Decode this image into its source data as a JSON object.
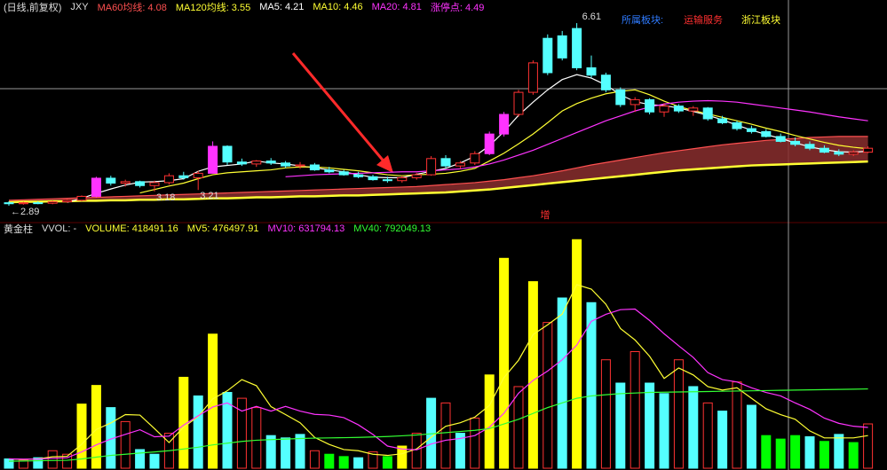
{
  "chart_data": [
    {
      "type": "candlestick",
      "header": "(日线,前复权)",
      "symbol": "JXY",
      "sectors": {
        "title": "所属板块:",
        "items": [
          "运输服务",
          "浙江板块"
        ],
        "colors": [
          "#ff3030",
          "#ffff33"
        ],
        "title_color": "#2f7bff"
      },
      "extra_legend": [
        {
          "legend": "涨停点: 4.49",
          "color": "#ff33ff"
        }
      ],
      "note": "增",
      "ylim": [
        2.6,
        6.9
      ],
      "kind_colors": {
        "up": "#ff3232",
        "down": "#54ffff",
        "limit": "#ff33ff"
      },
      "kinds": [
        "down",
        "up",
        "down",
        "up",
        "up",
        "up",
        "limit",
        "down",
        "up",
        "down",
        "up",
        "up",
        "down",
        "up",
        "limit",
        "down",
        "down",
        "up",
        "down",
        "down",
        "up",
        "down",
        "down",
        "down",
        "down",
        "down",
        "down",
        "up",
        "up",
        "up",
        "down",
        "up",
        "up",
        "limit",
        "limit",
        "up",
        "up",
        "down",
        "down",
        "down",
        "down",
        "down",
        "down",
        "up",
        "down",
        "up",
        "down",
        "up",
        "down",
        "down",
        "down",
        "down",
        "down",
        "down",
        "down",
        "down",
        "down",
        "down",
        "up",
        "up"
      ],
      "open": [
        2.95,
        2.93,
        2.95,
        2.94,
        2.97,
        3.0,
        3.08,
        3.45,
        3.35,
        3.38,
        3.3,
        3.36,
        3.5,
        3.46,
        3.55,
        4.1,
        3.78,
        3.74,
        3.8,
        3.76,
        3.7,
        3.72,
        3.62,
        3.58,
        3.52,
        3.48,
        3.42,
        3.4,
        3.46,
        3.52,
        3.85,
        3.7,
        3.76,
        3.95,
        4.35,
        4.75,
        5.2,
        6.3,
        6.35,
        6.5,
        5.7,
        5.55,
        5.25,
        4.95,
        5.05,
        4.8,
        4.92,
        4.82,
        4.88,
        4.66,
        4.58,
        4.46,
        4.4,
        4.3,
        4.2,
        4.14,
        4.06,
        3.98,
        3.94,
        3.98
      ],
      "high": [
        2.98,
        2.97,
        2.98,
        2.99,
        3.02,
        3.1,
        3.48,
        3.5,
        3.42,
        3.4,
        3.4,
        3.55,
        3.58,
        3.6,
        4.2,
        4.12,
        3.85,
        3.82,
        3.86,
        3.8,
        3.78,
        3.76,
        3.68,
        3.62,
        3.58,
        3.52,
        3.48,
        3.5,
        3.56,
        3.9,
        3.92,
        3.8,
        4.0,
        4.4,
        4.8,
        5.25,
        5.85,
        6.38,
        6.45,
        6.61,
        5.95,
        5.6,
        5.3,
        5.1,
        5.08,
        4.98,
        4.96,
        4.92,
        4.9,
        4.72,
        4.62,
        4.52,
        4.45,
        4.36,
        4.28,
        4.2,
        4.12,
        4.04,
        4.02,
        4.1
      ],
      "low": [
        2.89,
        2.91,
        2.92,
        2.92,
        2.95,
        2.98,
        3.06,
        3.3,
        3.28,
        3.26,
        3.18,
        3.32,
        3.42,
        3.21,
        3.55,
        3.72,
        3.7,
        3.68,
        3.72,
        3.66,
        3.64,
        3.6,
        3.55,
        3.5,
        3.45,
        3.4,
        3.36,
        3.36,
        3.42,
        3.5,
        3.66,
        3.64,
        3.72,
        3.92,
        4.3,
        4.7,
        5.15,
        5.55,
        5.85,
        5.65,
        5.5,
        5.2,
        4.9,
        4.8,
        4.75,
        4.7,
        4.78,
        4.72,
        4.62,
        4.55,
        4.42,
        4.36,
        4.28,
        4.18,
        4.1,
        4.02,
        3.96,
        3.9,
        3.9,
        3.96
      ],
      "close": [
        2.93,
        2.95,
        2.94,
        2.97,
        3.0,
        3.08,
        3.45,
        3.35,
        3.38,
        3.3,
        3.36,
        3.5,
        3.46,
        3.55,
        4.1,
        3.78,
        3.74,
        3.8,
        3.76,
        3.7,
        3.72,
        3.62,
        3.58,
        3.52,
        3.48,
        3.42,
        3.4,
        3.46,
        3.52,
        3.85,
        3.7,
        3.76,
        3.95,
        4.35,
        4.75,
        5.2,
        5.8,
        5.6,
        5.9,
        5.7,
        5.55,
        5.25,
        4.95,
        5.05,
        4.8,
        4.92,
        4.82,
        4.88,
        4.66,
        4.58,
        4.46,
        4.4,
        4.3,
        4.2,
        4.14,
        4.06,
        3.98,
        3.94,
        3.98,
        4.06
      ],
      "annotations": [
        {
          "label": "6.61",
          "value": 6.61
        },
        {
          "label": "←2.89",
          "value": 2.89
        },
        {
          "label": "3.18",
          "value": 3.18
        },
        {
          "label": "3.21",
          "value": 3.21
        }
      ],
      "lines": [
        {
          "legend": "MA60均线: 4.08",
          "color": "#ff5050",
          "area_color": "#8a2e2e",
          "area": true,
          "values": [
            3.0,
            3.01,
            3.02,
            3.03,
            3.04,
            3.05,
            3.06,
            3.07,
            3.08,
            3.09,
            3.1,
            3.11,
            3.12,
            3.13,
            3.14,
            3.15,
            3.16,
            3.17,
            3.18,
            3.19,
            3.2,
            3.21,
            3.22,
            3.23,
            3.24,
            3.25,
            3.26,
            3.27,
            3.28,
            3.3,
            3.32,
            3.34,
            3.36,
            3.39,
            3.42,
            3.46,
            3.5,
            3.55,
            3.6,
            3.66,
            3.72,
            3.77,
            3.82,
            3.87,
            3.92,
            3.97,
            4.01,
            4.05,
            4.09,
            4.13,
            4.16,
            4.19,
            4.22,
            4.24,
            4.26,
            4.28,
            4.29,
            4.3,
            4.3,
            4.3
          ]
        },
        {
          "legend": "MA120均线: 3.55",
          "color": "#ffff33",
          "width": 2.5,
          "values": [
            2.96,
            2.97,
            2.97,
            2.98,
            2.98,
            2.99,
            2.99,
            3.0,
            3.0,
            3.01,
            3.01,
            3.02,
            3.02,
            3.03,
            3.04,
            3.04,
            3.05,
            3.06,
            3.06,
            3.07,
            3.08,
            3.08,
            3.09,
            3.1,
            3.1,
            3.11,
            3.12,
            3.13,
            3.14,
            3.15,
            3.16,
            3.18,
            3.2,
            3.22,
            3.25,
            3.28,
            3.31,
            3.34,
            3.37,
            3.4,
            3.43,
            3.46,
            3.49,
            3.52,
            3.55,
            3.58,
            3.61,
            3.63,
            3.65,
            3.67,
            3.69,
            3.71,
            3.72,
            3.73,
            3.74,
            3.75,
            3.76,
            3.77,
            3.78,
            3.79
          ]
        },
        {
          "legend": "MA5: 4.21",
          "color": "#ffffff",
          "values": [
            null,
            null,
            null,
            null,
            2.96,
            3.04,
            3.14,
            3.23,
            3.31,
            3.37,
            3.38,
            3.4,
            3.44,
            3.59,
            3.68,
            3.71,
            3.74,
            3.8,
            3.76,
            3.74,
            3.7,
            3.66,
            3.62,
            3.58,
            3.52,
            3.47,
            3.46,
            3.46,
            3.53,
            3.59,
            3.65,
            3.76,
            3.9,
            4.11,
            4.4,
            4.73,
            5.0,
            5.25,
            5.46,
            5.56,
            5.49,
            5.35,
            5.15,
            5.01,
            4.95,
            4.93,
            4.88,
            4.81,
            4.73,
            4.64,
            4.53,
            4.43,
            4.34,
            4.26,
            4.17,
            4.09,
            4.03,
            3.99,
            3.98,
            4.0
          ]
        },
        {
          "legend": "MA10: 4.46",
          "color": "#ffff33",
          "values": [
            null,
            null,
            null,
            null,
            null,
            null,
            null,
            null,
            null,
            3.15,
            3.22,
            3.29,
            3.35,
            3.44,
            3.52,
            3.56,
            3.58,
            3.6,
            3.62,
            3.66,
            3.68,
            3.68,
            3.66,
            3.63,
            3.6,
            3.56,
            3.52,
            3.5,
            3.52,
            3.53,
            3.55,
            3.59,
            3.65,
            3.8,
            3.96,
            4.15,
            4.35,
            4.58,
            4.82,
            4.97,
            5.08,
            5.17,
            5.22,
            5.25,
            5.15,
            5.02,
            4.91,
            4.83,
            4.76,
            4.69,
            4.62,
            4.55,
            4.47,
            4.4,
            4.32,
            4.25,
            4.18,
            4.12,
            4.08,
            4.05
          ]
        },
        {
          "legend": "MA20: 4.81",
          "color": "#ff33ff",
          "values": [
            null,
            null,
            null,
            null,
            null,
            null,
            null,
            null,
            null,
            null,
            null,
            null,
            null,
            null,
            null,
            null,
            null,
            null,
            null,
            3.48,
            3.5,
            3.52,
            3.53,
            3.54,
            3.55,
            3.56,
            3.57,
            3.58,
            3.58,
            3.6,
            3.62,
            3.64,
            3.68,
            3.74,
            3.82,
            3.92,
            4.02,
            4.14,
            4.26,
            4.38,
            4.5,
            4.62,
            4.72,
            4.82,
            4.9,
            4.96,
            5.0,
            5.02,
            5.03,
            5.02,
            5.0,
            4.96,
            4.92,
            4.88,
            4.84,
            4.8,
            4.75,
            4.7,
            4.66,
            4.62
          ]
        }
      ]
    },
    {
      "type": "bar",
      "title": "黄金柱",
      "indicator": "VVOL: -",
      "ylim": [
        0,
        2000000
      ],
      "kind_colors": {
        "up": "#ff3232",
        "down": "#54ffff",
        "gold": "#ffff00",
        "green": "#00ff00"
      },
      "kinds": [
        "down",
        "up",
        "down",
        "up",
        "up",
        "gold",
        "gold",
        "down",
        "up",
        "down",
        "down",
        "up",
        "gold",
        "down",
        "gold",
        "down",
        "up",
        "up",
        "down",
        "down",
        "down",
        "up",
        "green",
        "green",
        "down",
        "up",
        "green",
        "gold",
        "up",
        "down",
        "up",
        "down",
        "up",
        "gold",
        "gold",
        "up",
        "gold",
        "up",
        "down",
        "gold",
        "down",
        "up",
        "down",
        "up",
        "down",
        "down",
        "up",
        "down",
        "up",
        "down",
        "up",
        "down",
        "green",
        "green",
        "green",
        "down",
        "green",
        "down",
        "green",
        "up"
      ],
      "values": [
        80000,
        70000,
        90000,
        150000,
        120000,
        550000,
        710000,
        520000,
        400000,
        160000,
        120000,
        300000,
        780000,
        620000,
        1150000,
        650000,
        600000,
        520000,
        280000,
        260000,
        290000,
        150000,
        120000,
        100000,
        90000,
        140000,
        100000,
        190000,
        300000,
        600000,
        560000,
        300000,
        430000,
        800000,
        1800000,
        700000,
        1600000,
        1250000,
        1460000,
        1960000,
        1420000,
        930000,
        730000,
        1000000,
        730000,
        640000,
        930000,
        700000,
        560000,
        490000,
        740000,
        540000,
        280000,
        250000,
        280000,
        270000,
        230000,
        290000,
        220000,
        380000
      ],
      "lines": [
        {
          "legend": "VOLUME: 418491.16",
          "color": "#ffff33",
          "values": null
        },
        {
          "legend": "MV5: 476497.91",
          "color": "#ffff33",
          "values": [
            80000,
            75000,
            80000,
            98000,
            102000,
            206000,
            332000,
            388000,
            460000,
            456000,
            340000,
            220000,
            352000,
            444000,
            594000,
            664000,
            760000,
            708000,
            528000,
            460000,
            390000,
            264000,
            204000,
            160000,
            150000,
            120000,
            110000,
            124000,
            166000,
            266000,
            360000,
            390000,
            438000,
            538000,
            778000,
            926000,
            1146000,
            1230000,
            1322000,
            1574000,
            1536000,
            1406000,
            1198000,
            1100000,
            960000,
            770000,
            860000,
            800000,
            700000,
            670000,
            690000,
            600000,
            510000,
            460000,
            420000,
            320000,
            260000,
            260000,
            260000,
            280000
          ]
        },
        {
          "legend": "MV10: 631794.13",
          "color": "#ff33ff",
          "values": [
            80000,
            78000,
            79000,
            85000,
            90000,
            140000,
            200000,
            250000,
            290000,
            330000,
            270000,
            275000,
            370000,
            450000,
            525000,
            560000,
            490000,
            530000,
            490000,
            530000,
            490000,
            462000,
            456000,
            434000,
            372000,
            290000,
            190000,
            165000,
            158000,
            208000,
            240000,
            255000,
            280000,
            352000,
            472000,
            643000,
            753000,
            834000,
            930000,
            1056000,
            1260000,
            1320000,
            1360000,
            1365000,
            1267000,
            1153000,
            1050000,
            950000,
            820000,
            760000,
            740000,
            690000,
            650000,
            620000,
            560000,
            505000,
            430000,
            385000,
            360000,
            350000
          ]
        },
        {
          "legend": "MV40: 792049.13",
          "color": "#33ff33",
          "values": [
            60000,
            62000,
            64000,
            66000,
            68000,
            80000,
            95000,
            110000,
            120000,
            130000,
            140000,
            150000,
            165000,
            180000,
            200000,
            215000,
            230000,
            240000,
            245000,
            250000,
            255000,
            258000,
            260000,
            262000,
            264000,
            268000,
            272000,
            278000,
            285000,
            295000,
            305000,
            315000,
            325000,
            340000,
            380000,
            420000,
            470000,
            520000,
            560000,
            600000,
            620000,
            630000,
            640000,
            645000,
            650000,
            652000,
            654000,
            656000,
            658000,
            660000,
            662000,
            664000,
            666000,
            668000,
            670000,
            672000,
            674000,
            676000,
            678000,
            680000
          ]
        }
      ]
    }
  ]
}
